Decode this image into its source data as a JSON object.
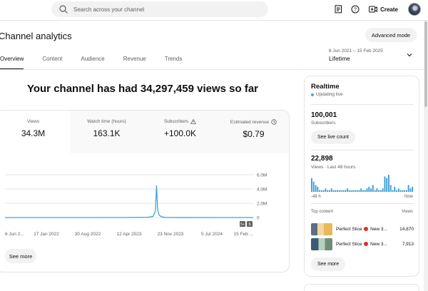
{
  "topbar": {
    "search_placeholder": "Search across your channel",
    "create_label": "Create",
    "icons": [
      "search-icon",
      "feedback-icon",
      "help-icon",
      "create-video-icon"
    ]
  },
  "page": {
    "title": "Channel analytics",
    "advanced_mode_label": "Advanced mode",
    "headline": "Your channel has had 34,297,459 views so far"
  },
  "tabs": [
    {
      "label": "Overview",
      "active": true
    },
    {
      "label": "Content",
      "active": false
    },
    {
      "label": "Audience",
      "active": false
    },
    {
      "label": "Revenue",
      "active": false
    },
    {
      "label": "Trends",
      "active": false
    }
  ],
  "date_filter": {
    "range": "6 Jun 2021 – 15 Feb 2025",
    "label": "Lifetime"
  },
  "metrics": [
    {
      "label": "Views",
      "value": "34.3M",
      "selected": true
    },
    {
      "label": "Watch time (hours)",
      "value": "163.1K",
      "selected": false
    },
    {
      "label": "Subscribers",
      "value": "+100.0K",
      "selected": false,
      "icon": "warning-icon"
    },
    {
      "label": "Estimated revenue",
      "value": "$0.79",
      "selected": false,
      "icon": "clock-icon"
    }
  ],
  "chart_data": {
    "type": "line",
    "x_tick_labels": [
      "6 Jun 2...",
      "17 Jan 2022",
      "30 Aug 2022",
      "12 Apr 2023",
      "23 Nov 2023",
      "5 Jul 2024",
      "15 Feb ..."
    ],
    "y_tick_labels": [
      "6.0M",
      "4.0M",
      "2.0M",
      "0"
    ],
    "ylim": [
      0,
      6000000
    ],
    "series": [
      {
        "color": "#41a0d5",
        "x": [
          "2021-06-06",
          "2022-01-17",
          "2022-08-30",
          "2023-04-12",
          "2023-07-20",
          "2023-08-20",
          "2023-09-02",
          "2023-09-08",
          "2023-09-14",
          "2023-09-22",
          "2023-10-05",
          "2023-10-25",
          "2023-11-23",
          "2024-07-05",
          "2025-02-15"
        ],
        "y": [
          0,
          0,
          0,
          10000,
          30000,
          150000,
          900000,
          4500000,
          1100000,
          350000,
          100000,
          20000,
          10000,
          0,
          0
        ]
      }
    ],
    "grid": true,
    "markers": [
      "5+",
      "$"
    ]
  },
  "see_more_label": "See more",
  "realtime": {
    "title": "Realtime",
    "status": "Updating live",
    "subscribers_value": "100,001",
    "subscribers_label": "Subscribers",
    "live_count_button": "See live count",
    "views_value": "22,898",
    "views_label": "Views · Last 48 hours",
    "spark_values": [
      8,
      6,
      4,
      3,
      1,
      1,
      1,
      2,
      1,
      1,
      2,
      1,
      1,
      1,
      1,
      1,
      1,
      1,
      2,
      1,
      1,
      1,
      1,
      1,
      1,
      2,
      1,
      1,
      2,
      3,
      2,
      4,
      1,
      2,
      1,
      1,
      2,
      9,
      8,
      10,
      4,
      1,
      3,
      1,
      2,
      1,
      1,
      1,
      1,
      4,
      2,
      3
    ],
    "axis_start": "-48 h",
    "axis_end": "Now",
    "top_content_label": "Top content",
    "views_col_label": "Views",
    "top_content": [
      {
        "title": "Perfect Slice",
        "suffix": "New 3...",
        "views": "14,870"
      },
      {
        "title": "Perfect Slice",
        "suffix": "New 3...",
        "views": "7,913"
      }
    ],
    "see_more_label": "See more"
  }
}
